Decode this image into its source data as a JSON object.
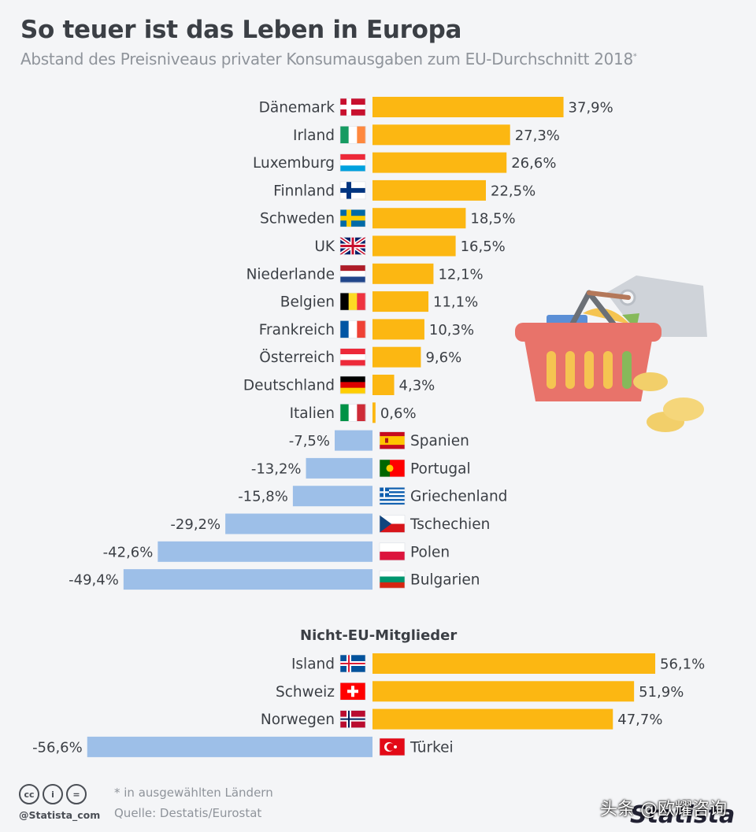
{
  "header": {
    "title": "So teuer ist das Leben in Europa",
    "subtitle": "Abstand des Preisniveaus privater Konsumausgaben zum EU-Durchschnitt 2018",
    "subtitle_mark": "*"
  },
  "chart_data": {
    "type": "bar",
    "orientation": "horizontal",
    "unit": "%",
    "colors": {
      "positive": "#fcb712",
      "negative": "#9dbfe8"
    },
    "groups": [
      {
        "heading": "",
        "categories": [
          "Dänemark",
          "Irland",
          "Luxemburg",
          "Finnland",
          "Schweden",
          "UK",
          "Niederlande",
          "Belgien",
          "Frankreich",
          "Österreich",
          "Deutschland",
          "Italien",
          "Spanien",
          "Portugal",
          "Griechenland",
          "Tschechien",
          "Polen",
          "Bulgarien"
        ],
        "values": [
          37.9,
          27.3,
          26.6,
          22.5,
          18.5,
          16.5,
          12.1,
          11.1,
          10.3,
          9.6,
          4.3,
          0.6,
          -7.5,
          -13.2,
          -15.8,
          -29.2,
          -42.6,
          -49.4
        ],
        "labels": [
          "37,9%",
          "27,3%",
          "26,6%",
          "22,5%",
          "18,5%",
          "16,5%",
          "12,1%",
          "11,1%",
          "10,3%",
          "9,6%",
          "4,3%",
          "0,6%",
          "-7,5%",
          "-13,2%",
          "-15,8%",
          "-29,2%",
          "-42,6%",
          "-49,4%"
        ]
      },
      {
        "heading": "Nicht-EU-Mitglieder",
        "categories": [
          "Island",
          "Schweiz",
          "Norwegen",
          "Türkei"
        ],
        "values": [
          56.1,
          51.9,
          47.7,
          -56.6
        ],
        "labels": [
          "56,1%",
          "51,9%",
          "47,7%",
          "-56,6%"
        ]
      }
    ]
  },
  "footer": {
    "note": "* in ausgewählten Ländern",
    "source": "Quelle: Destatis/Eurostat",
    "handle": "@Statista_com",
    "brand": "Statista",
    "watermark": "头条 @欧耀咨询",
    "license_icons": [
      "cc-icon",
      "attribution-icon",
      "no-derivatives-icon"
    ]
  }
}
